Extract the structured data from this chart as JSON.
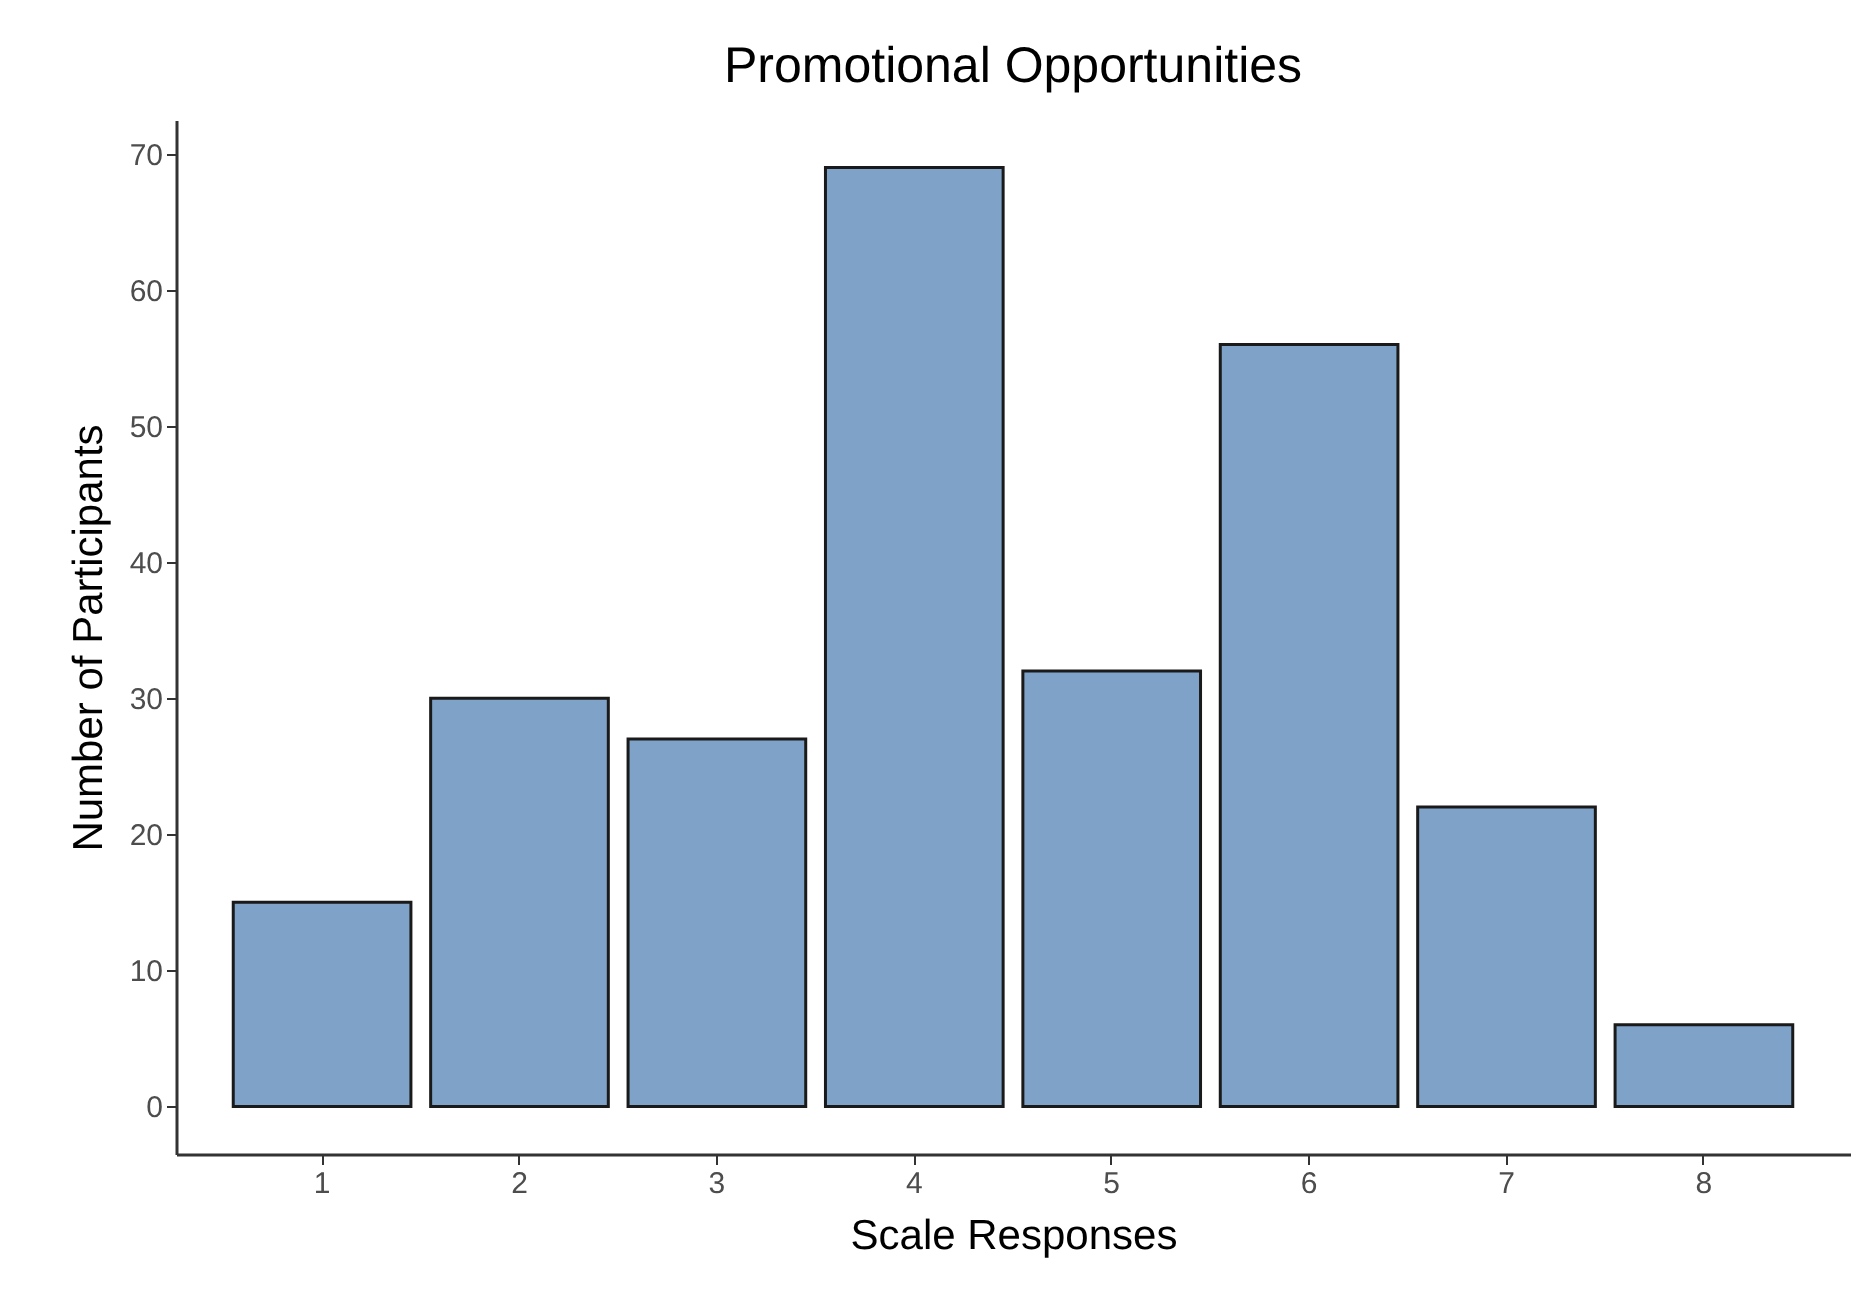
{
  "chart_data": {
    "type": "bar",
    "title": "Promotional Opportunities",
    "xlabel": "Scale Responses",
    "ylabel": "Number of Participants",
    "categories": [
      "1",
      "2",
      "3",
      "4",
      "5",
      "6",
      "7",
      "8"
    ],
    "values": [
      15,
      30,
      27,
      69,
      32,
      56,
      22,
      6
    ],
    "color": "#7fa2c8",
    "ylim": [
      -3.5,
      72.5
    ],
    "yticks": [
      0,
      10,
      20,
      30,
      40,
      50,
      60,
      70
    ],
    "grid": false
  }
}
